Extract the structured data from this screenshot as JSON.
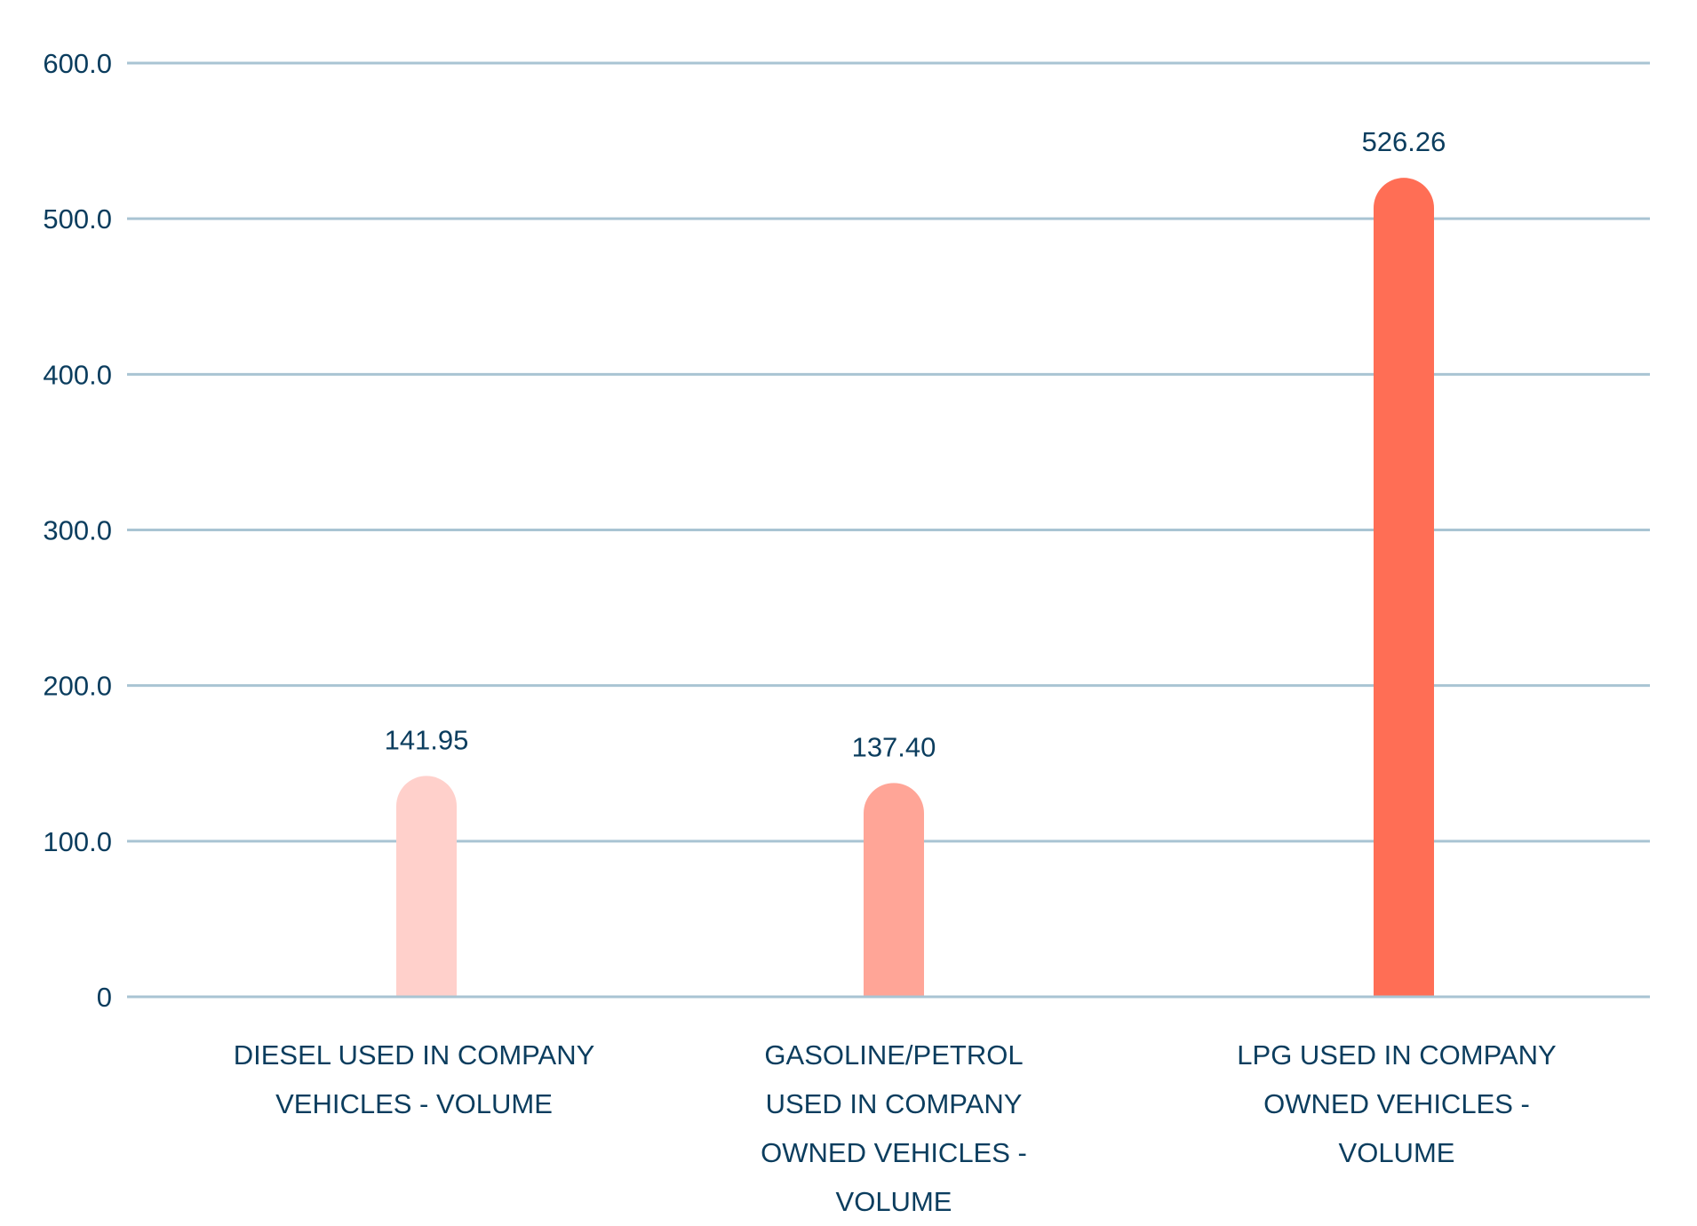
{
  "chart_data": {
    "type": "bar",
    "categories": [
      "DIESEL USED IN COMPANY VEHICLES - VOLUME",
      "GASOLINE/PETROL USED IN COMPANY OWNED VEHICLES - VOLUME",
      "LPG USED IN COMPANY OWNED VEHICLES - VOLUME"
    ],
    "values": [
      141.95,
      137.4,
      526.26
    ],
    "data_labels": [
      "141.95",
      "137.40",
      "526.26"
    ],
    "colors": [
      "#ffd0cb",
      "#ffa597",
      "#ff6e55"
    ],
    "title": "",
    "xlabel": "",
    "ylabel": "",
    "ylim": [
      0,
      600
    ],
    "yticks": [
      0,
      100,
      200,
      300,
      400,
      500,
      600
    ],
    "ytick_labels": [
      "0",
      "100.0",
      "200.0",
      "300.0",
      "400.0",
      "500.0",
      "600.0"
    ],
    "grid": true,
    "gridline_color": "#a9c4d3",
    "text_color": "#0b3d5e",
    "legend": "none"
  }
}
